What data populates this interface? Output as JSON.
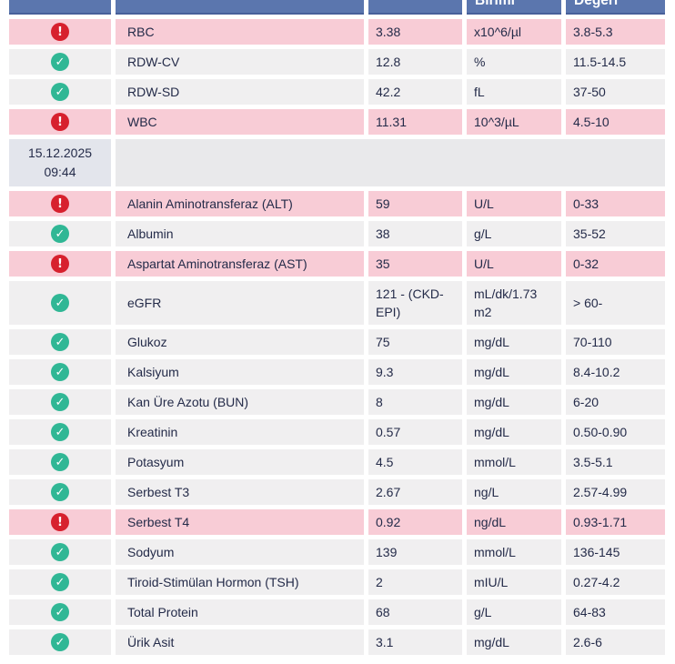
{
  "table": {
    "headers": [
      {
        "label": ""
      },
      {
        "label": ""
      },
      {
        "label": ""
      },
      {
        "label": "Birimi"
      },
      {
        "label": "Değeri"
      }
    ],
    "icons": {
      "abnormal_glyph": "!",
      "normal_glyph": "✓",
      "abnormal_name": "error-icon",
      "normal_name": "check-icon"
    },
    "colors": {
      "header_bg": "#5b76ae",
      "header_border": "#47609a",
      "abnormal_bg": "#f8ccd6",
      "normal_bg": "#f0eff0",
      "date_cell_bg": "#e3e5ec",
      "date_span_bg": "#e9e9eb",
      "text": "#242b49",
      "error": "#d7212e",
      "ok": "#30b795"
    },
    "rows": [
      {
        "type": "result",
        "status": "abnormal",
        "name": "RBC",
        "value": "3.38",
        "unit": "x10^6/µl",
        "range": "3.8-5.3"
      },
      {
        "type": "result",
        "status": "normal",
        "name": "RDW-CV",
        "value": "12.8",
        "unit": "%",
        "range": "11.5-14.5"
      },
      {
        "type": "result",
        "status": "normal",
        "name": "RDW-SD",
        "value": "42.2",
        "unit": "fL",
        "range": "37-50"
      },
      {
        "type": "result",
        "status": "abnormal",
        "name": "WBC",
        "value": "11.31",
        "unit": "10^3/µL",
        "range": "4.5-10"
      },
      {
        "type": "date",
        "date": "15.12.2025",
        "time": "09:44"
      },
      {
        "type": "result",
        "status": "abnormal",
        "name": "Alanin Aminotransferaz (ALT)",
        "value": "59",
        "unit": "U/L",
        "range": "0-33"
      },
      {
        "type": "result",
        "status": "normal",
        "name": "Albumin",
        "value": "38",
        "unit": "g/L",
        "range": "35-52"
      },
      {
        "type": "result",
        "status": "abnormal",
        "name": "Aspartat Aminotransferaz (AST)",
        "value": "35",
        "unit": "U/L",
        "range": "0-32"
      },
      {
        "type": "result",
        "status": "normal",
        "name": "eGFR",
        "value": "121 - (CKD-EPI)",
        "unit": "mL/dk/1.73 m2",
        "range": "> 60-"
      },
      {
        "type": "result",
        "status": "normal",
        "name": "Glukoz",
        "value": "75",
        "unit": "mg/dL",
        "range": "70-110"
      },
      {
        "type": "result",
        "status": "normal",
        "name": "Kalsiyum",
        "value": "9.3",
        "unit": "mg/dL",
        "range": "8.4-10.2"
      },
      {
        "type": "result",
        "status": "normal",
        "name": "Kan Üre Azotu (BUN)",
        "value": "8",
        "unit": "mg/dL",
        "range": "6-20"
      },
      {
        "type": "result",
        "status": "normal",
        "name": "Kreatinin",
        "value": "0.57",
        "unit": "mg/dL",
        "range": "0.50-0.90"
      },
      {
        "type": "result",
        "status": "normal",
        "name": "Potasyum",
        "value": "4.5",
        "unit": "mmol/L",
        "range": "3.5-5.1"
      },
      {
        "type": "result",
        "status": "normal",
        "name": "Serbest T3",
        "value": "2.67",
        "unit": "ng/L",
        "range": "2.57-4.99"
      },
      {
        "type": "result",
        "status": "abnormal",
        "name": "Serbest T4",
        "value": "0.92",
        "unit": "ng/dL",
        "range": "0.93-1.71"
      },
      {
        "type": "result",
        "status": "normal",
        "name": "Sodyum",
        "value": "139",
        "unit": "mmol/L",
        "range": "136-145"
      },
      {
        "type": "result",
        "status": "normal",
        "name": "Tiroid-Stimülan Hormon (TSH)",
        "value": "2",
        "unit": "mIU/L",
        "range": "0.27-4.2"
      },
      {
        "type": "result",
        "status": "normal",
        "name": "Total Protein",
        "value": "68",
        "unit": "g/L",
        "range": "64-83"
      },
      {
        "type": "result",
        "status": "normal",
        "name": "Ürik Asit",
        "value": "3.1",
        "unit": "mg/dL",
        "range": "2.6-6"
      }
    ]
  }
}
